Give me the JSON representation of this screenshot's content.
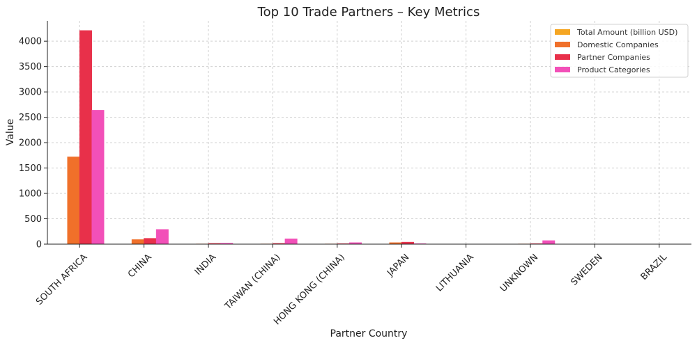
{
  "chart_data": {
    "type": "bar",
    "title": "Top 10 Trade Partners – Key Metrics",
    "xlabel": "Partner Country",
    "ylabel": "Value",
    "ylim": [
      0,
      4400
    ],
    "yticks": [
      0,
      500,
      1000,
      1500,
      2000,
      2500,
      3000,
      3500,
      4000
    ],
    "grid": true,
    "legend_position": "top-right",
    "categories": [
      "SOUTH AFRICA",
      "CHINA",
      "INDIA",
      "TAIWAN (CHINA)",
      "HONG KONG (CHINA)",
      "JAPAN",
      "LITHUANIA",
      "UNKNOWN",
      "SWEDEN",
      "BRAZIL"
    ],
    "series": [
      {
        "name": "Total Amount (billion USD)",
        "color": "#f5a623",
        "values": [
          1,
          0.5,
          0.1,
          0.1,
          0.1,
          0.1,
          0.05,
          0.05,
          0.05,
          0.05
        ]
      },
      {
        "name": "Domestic Companies",
        "color": "#f0702a",
        "values": [
          1720,
          90,
          5,
          5,
          5,
          30,
          1,
          5,
          1,
          1
        ]
      },
      {
        "name": "Partner Companies",
        "color": "#e8304a",
        "values": [
          4210,
          115,
          15,
          15,
          10,
          40,
          1,
          10,
          1,
          1
        ]
      },
      {
        "name": "Product Categories",
        "color": "#f250b8",
        "values": [
          2640,
          290,
          20,
          105,
          30,
          10,
          1,
          70,
          1,
          1
        ]
      }
    ]
  }
}
